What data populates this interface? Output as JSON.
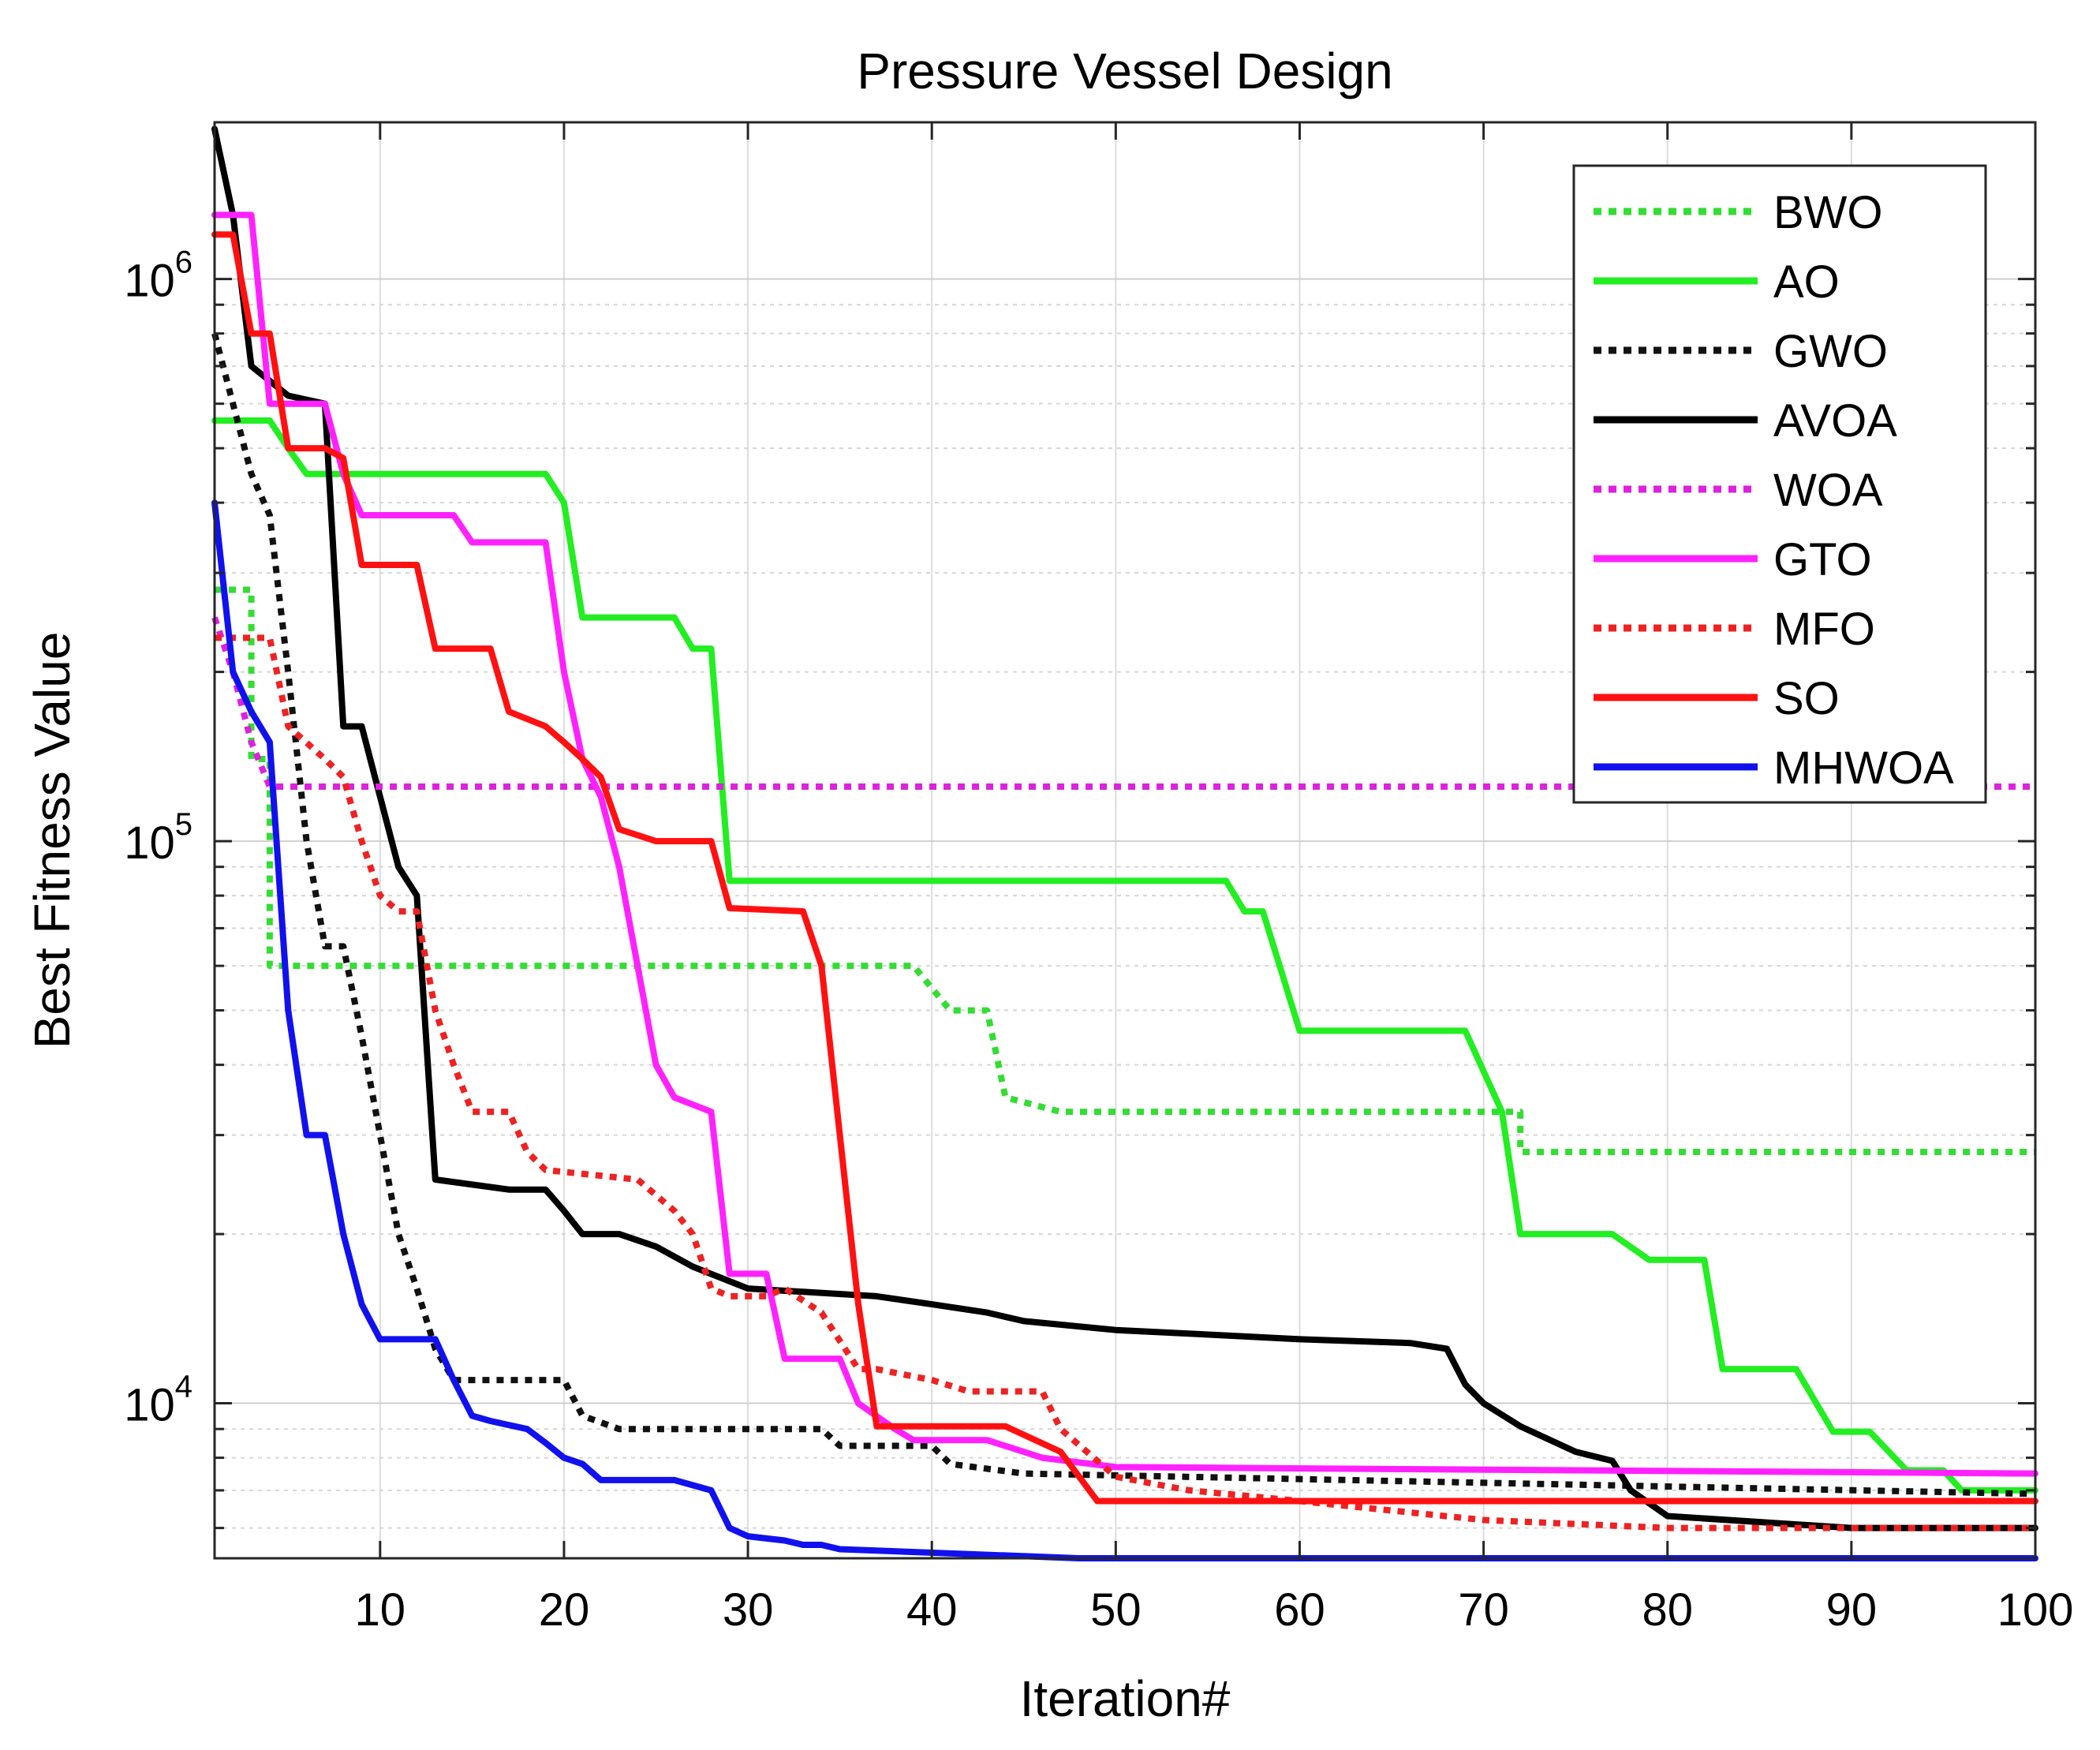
{
  "chart_data": {
    "type": "line",
    "title": "Pressure Vessel Design",
    "xlabel": "Iteration#",
    "ylabel": "Best Fitness Value",
    "xlim": [
      1,
      100
    ],
    "ylim": [
      5300,
      1900000
    ],
    "yscale": "log",
    "grid": true,
    "legend_position": "top-right",
    "x_ticks": [
      10,
      20,
      30,
      40,
      50,
      60,
      70,
      80,
      90,
      100
    ],
    "y_ticks": [
      {
        "value": 10000,
        "base": "10",
        "exp": "4"
      },
      {
        "value": 100000,
        "base": "10",
        "exp": "5"
      },
      {
        "value": 1000000,
        "base": "10",
        "exp": "6"
      }
    ],
    "series": [
      {
        "name": "BWO",
        "color": "#33dd33",
        "dash": "dotted",
        "points": [
          [
            1,
            280000
          ],
          [
            3,
            280000
          ],
          [
            3,
            140000
          ],
          [
            4,
            140000
          ],
          [
            4,
            60000
          ],
          [
            39,
            60000
          ],
          [
            41,
            50000
          ],
          [
            43,
            50000
          ],
          [
            44,
            35000
          ],
          [
            47,
            33000
          ],
          [
            72,
            33000
          ],
          [
            72,
            28000
          ],
          [
            100,
            28000
          ]
        ]
      },
      {
        "name": "AO",
        "color": "#22ee22",
        "dash": "solid",
        "points": [
          [
            1,
            560000
          ],
          [
            4,
            560000
          ],
          [
            5,
            500000
          ],
          [
            6,
            450000
          ],
          [
            10,
            450000
          ],
          [
            19,
            450000
          ],
          [
            20,
            400000
          ],
          [
            21,
            250000
          ],
          [
            26,
            250000
          ],
          [
            27,
            220000
          ],
          [
            28,
            220000
          ],
          [
            29,
            85000
          ],
          [
            56,
            85000
          ],
          [
            57,
            75000
          ],
          [
            58,
            75000
          ],
          [
            60,
            46000
          ],
          [
            69,
            46000
          ],
          [
            71,
            33000
          ],
          [
            72,
            20000
          ],
          [
            77,
            20000
          ],
          [
            79,
            18000
          ],
          [
            80,
            18000
          ],
          [
            82,
            18000
          ],
          [
            83,
            11500
          ],
          [
            87,
            11500
          ],
          [
            89,
            8900
          ],
          [
            90,
            8900
          ],
          [
            91,
            8900
          ],
          [
            93,
            7600
          ],
          [
            95,
            7600
          ],
          [
            96,
            7000
          ],
          [
            100,
            7000
          ]
        ]
      },
      {
        "name": "GWO",
        "color": "#111111",
        "dash": "dotted",
        "points": [
          [
            1,
            800000
          ],
          [
            2,
            600000
          ],
          [
            3,
            450000
          ],
          [
            4,
            380000
          ],
          [
            5,
            200000
          ],
          [
            6,
            100000
          ],
          [
            7,
            65000
          ],
          [
            8,
            65000
          ],
          [
            9,
            45000
          ],
          [
            10,
            30000
          ],
          [
            11,
            20000
          ],
          [
            12,
            16000
          ],
          [
            13,
            12500
          ],
          [
            14,
            11000
          ],
          [
            20,
            11000
          ],
          [
            21,
            9500
          ],
          [
            23,
            9000
          ],
          [
            34,
            9000
          ],
          [
            35,
            8400
          ],
          [
            40,
            8400
          ],
          [
            41,
            7800
          ],
          [
            45,
            7500
          ],
          [
            100,
            6900
          ]
        ]
      },
      {
        "name": "AVOA",
        "color": "#000000",
        "dash": "solid",
        "points": [
          [
            1,
            1850000
          ],
          [
            2,
            1300000
          ],
          [
            3,
            700000
          ],
          [
            5,
            620000
          ],
          [
            7,
            600000
          ],
          [
            8,
            160000
          ],
          [
            9,
            160000
          ],
          [
            10,
            120000
          ],
          [
            11,
            90000
          ],
          [
            12,
            80000
          ],
          [
            13,
            25000
          ],
          [
            17,
            24000
          ],
          [
            19,
            24000
          ],
          [
            20,
            22000
          ],
          [
            21,
            20000
          ],
          [
            23,
            20000
          ],
          [
            25,
            19000
          ],
          [
            27,
            17500
          ],
          [
            30,
            16000
          ],
          [
            37,
            15500
          ],
          [
            40,
            15000
          ],
          [
            43,
            14500
          ],
          [
            45,
            14000
          ],
          [
            50,
            13500
          ],
          [
            56,
            13200
          ],
          [
            60,
            13000
          ],
          [
            66,
            12800
          ],
          [
            68,
            12500
          ],
          [
            69,
            10800
          ],
          [
            70,
            10000
          ],
          [
            72,
            9100
          ],
          [
            75,
            8200
          ],
          [
            77,
            7900
          ],
          [
            78,
            7000
          ],
          [
            80,
            6300
          ],
          [
            90,
            6000
          ],
          [
            100,
            6000
          ]
        ]
      },
      {
        "name": "WOA",
        "color": "#dd22dd",
        "dash": "dotted",
        "points": [
          [
            1,
            250000
          ],
          [
            2,
            200000
          ],
          [
            3,
            150000
          ],
          [
            4,
            125000
          ],
          [
            5,
            125000
          ],
          [
            100,
            125000
          ]
        ]
      },
      {
        "name": "GTO",
        "color": "#ff22ff",
        "dash": "solid",
        "points": [
          [
            1,
            1300000
          ],
          [
            3,
            1300000
          ],
          [
            4,
            600000
          ],
          [
            7,
            600000
          ],
          [
            8,
            450000
          ],
          [
            9,
            380000
          ],
          [
            14,
            380000
          ],
          [
            15,
            340000
          ],
          [
            18,
            340000
          ],
          [
            19,
            340000
          ],
          [
            20,
            200000
          ],
          [
            21,
            140000
          ],
          [
            22,
            120000
          ],
          [
            23,
            90000
          ],
          [
            24,
            60000
          ],
          [
            25,
            40000
          ],
          [
            26,
            35000
          ],
          [
            28,
            33000
          ],
          [
            29,
            17000
          ],
          [
            31,
            17000
          ],
          [
            32,
            12000
          ],
          [
            35,
            12000
          ],
          [
            36,
            10000
          ],
          [
            38,
            9000
          ],
          [
            39,
            8600
          ],
          [
            43,
            8600
          ],
          [
            46,
            8000
          ],
          [
            50,
            7700
          ],
          [
            100,
            7500
          ]
        ]
      },
      {
        "name": "MFO",
        "color": "#ee2222",
        "dash": "dotted",
        "points": [
          [
            1,
            230000
          ],
          [
            4,
            230000
          ],
          [
            5,
            160000
          ],
          [
            7,
            140000
          ],
          [
            8,
            130000
          ],
          [
            9,
            100000
          ],
          [
            10,
            80000
          ],
          [
            11,
            75000
          ],
          [
            12,
            75000
          ],
          [
            13,
            50000
          ],
          [
            14,
            40000
          ],
          [
            15,
            33000
          ],
          [
            17,
            33000
          ],
          [
            18,
            28000
          ],
          [
            19,
            26000
          ],
          [
            24,
            25000
          ],
          [
            26,
            22000
          ],
          [
            27,
            20000
          ],
          [
            28,
            16000
          ],
          [
            29,
            15500
          ],
          [
            31,
            15500
          ],
          [
            32,
            16000
          ],
          [
            34,
            14500
          ],
          [
            36,
            11500
          ],
          [
            37,
            11500
          ],
          [
            40,
            11000
          ],
          [
            42,
            10500
          ],
          [
            46,
            10500
          ],
          [
            47,
            9000
          ],
          [
            50,
            7400
          ],
          [
            54,
            7000
          ],
          [
            60,
            6700
          ],
          [
            70,
            6200
          ],
          [
            80,
            6000
          ],
          [
            100,
            6000
          ]
        ]
      },
      {
        "name": "SO",
        "color": "#ff1111",
        "dash": "solid",
        "points": [
          [
            1,
            1200000
          ],
          [
            2,
            1200000
          ],
          [
            3,
            800000
          ],
          [
            4,
            800000
          ],
          [
            5,
            500000
          ],
          [
            7,
            500000
          ],
          [
            8,
            480000
          ],
          [
            9,
            310000
          ],
          [
            12,
            310000
          ],
          [
            13,
            220000
          ],
          [
            16,
            220000
          ],
          [
            17,
            170000
          ],
          [
            19,
            160000
          ],
          [
            20,
            150000
          ],
          [
            21,
            140000
          ],
          [
            22,
            130000
          ],
          [
            23,
            105000
          ],
          [
            25,
            100000
          ],
          [
            28,
            100000
          ],
          [
            29,
            76000
          ],
          [
            33,
            75000
          ],
          [
            34,
            60000
          ],
          [
            35,
            30000
          ],
          [
            36,
            15000
          ],
          [
            37,
            9100
          ],
          [
            44,
            9100
          ],
          [
            47,
            8200
          ],
          [
            49,
            6700
          ],
          [
            100,
            6700
          ]
        ]
      },
      {
        "name": "MHWOA",
        "color": "#1111ee",
        "dash": "solid",
        "points": [
          [
            1,
            400000
          ],
          [
            2,
            200000
          ],
          [
            3,
            170000
          ],
          [
            4,
            150000
          ],
          [
            5,
            50000
          ],
          [
            6,
            30000
          ],
          [
            7,
            30000
          ],
          [
            8,
            20000
          ],
          [
            9,
            15000
          ],
          [
            10,
            13000
          ],
          [
            13,
            13000
          ],
          [
            14,
            11000
          ],
          [
            15,
            9500
          ],
          [
            16,
            9300
          ],
          [
            18,
            9000
          ],
          [
            19,
            8500
          ],
          [
            20,
            8000
          ],
          [
            21,
            7800
          ],
          [
            22,
            7300
          ],
          [
            26,
            7300
          ],
          [
            28,
            7000
          ],
          [
            29,
            6000
          ],
          [
            30,
            5800
          ],
          [
            32,
            5700
          ],
          [
            33,
            5600
          ],
          [
            34,
            5600
          ],
          [
            35,
            5500
          ],
          [
            48,
            5300
          ],
          [
            100,
            5300
          ]
        ]
      }
    ]
  }
}
